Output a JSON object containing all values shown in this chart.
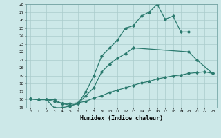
{
  "line1_x": [
    0,
    1,
    2,
    3,
    4,
    5,
    6,
    7,
    8,
    9,
    10,
    11,
    12,
    13,
    14,
    15,
    16,
    17,
    18,
    19,
    20
  ],
  "line1_y": [
    16.1,
    16.0,
    16.0,
    15.0,
    15.0,
    15.2,
    15.5,
    17.0,
    19.0,
    21.5,
    22.5,
    23.5,
    25.0,
    25.3,
    26.5,
    27.0,
    28.0,
    26.1,
    26.5,
    24.5,
    24.5
  ],
  "line2_x": [
    0,
    1,
    2,
    3,
    4,
    5,
    6,
    7,
    8,
    9,
    10,
    11,
    12,
    13,
    20,
    21,
    23
  ],
  "line2_y": [
    16.1,
    16.0,
    16.0,
    16.0,
    15.5,
    15.3,
    15.5,
    16.5,
    17.5,
    19.5,
    20.5,
    21.2,
    21.8,
    22.5,
    22.0,
    21.0,
    19.3
  ],
  "line3_x": [
    0,
    1,
    2,
    3,
    4,
    5,
    6,
    7,
    8,
    9,
    10,
    11,
    12,
    13,
    14,
    15,
    16,
    17,
    18,
    19,
    20,
    21,
    22,
    23
  ],
  "line3_y": [
    16.1,
    16.0,
    16.0,
    15.8,
    15.5,
    15.5,
    15.6,
    15.8,
    16.2,
    16.5,
    16.9,
    17.2,
    17.5,
    17.8,
    18.1,
    18.3,
    18.6,
    18.8,
    19.0,
    19.1,
    19.3,
    19.4,
    19.5,
    19.3
  ],
  "bg_color": "#cce8e8",
  "line_color": "#2a7a6e",
  "grid_color": "#aacccc",
  "xlabel": "Humidex (Indice chaleur)",
  "ylim": [
    15,
    28
  ],
  "xlim": [
    -0.5,
    23.5
  ],
  "yticks": [
    15,
    16,
    17,
    18,
    19,
    20,
    21,
    22,
    23,
    24,
    25,
    26,
    27,
    28
  ],
  "xticks": [
    0,
    1,
    2,
    3,
    4,
    5,
    6,
    7,
    8,
    9,
    10,
    11,
    12,
    13,
    14,
    15,
    16,
    17,
    18,
    19,
    20,
    21,
    22,
    23
  ]
}
